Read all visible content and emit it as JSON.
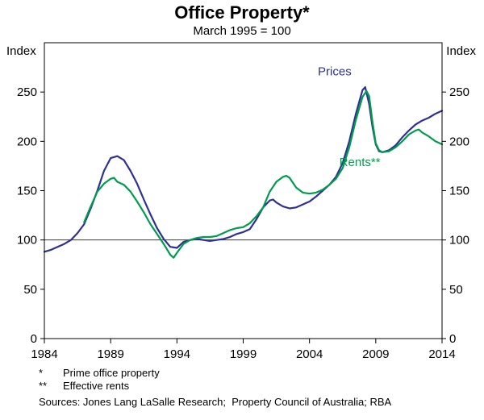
{
  "title": "Office Property*",
  "subtitle": "March 1995 = 100",
  "axis_units": {
    "left": "Index",
    "right": "Index"
  },
  "footnotes": [
    {
      "marker": "*",
      "text": "Prime office property"
    },
    {
      "marker": "**",
      "text": "Effective rents"
    }
  ],
  "sources": "Sources: Jones Lang LaSalle Research;  Property Council of Australia; RBA",
  "colors": {
    "prices": "#2e3192",
    "rents": "#009b4e",
    "axis": "#000000",
    "reference_line": "#3a3a3a"
  },
  "chart_data": {
    "type": "line",
    "title": "Office Property*",
    "subtitle": "March 1995 = 100",
    "xlabel": "",
    "ylabel": "Index",
    "xlim": [
      1984,
      2014
    ],
    "ylim": [
      0,
      300
    ],
    "xticks": [
      1984,
      1989,
      1994,
      1999,
      2004,
      2009,
      2014
    ],
    "yticks": [
      0,
      50,
      100,
      150,
      200,
      250
    ],
    "reference_line": 100,
    "grid": false,
    "legend_position": "inline-annotations",
    "series": [
      {
        "name": "Prices",
        "color": "#2e3192",
        "label_pos": [
          2005.9,
          267
        ],
        "points": [
          [
            1984,
            88
          ],
          [
            1984.5,
            90
          ],
          [
            1985,
            93
          ],
          [
            1985.5,
            96
          ],
          [
            1986,
            100
          ],
          [
            1986.5,
            107
          ],
          [
            1987,
            116
          ],
          [
            1987.5,
            132
          ],
          [
            1988,
            150
          ],
          [
            1988.5,
            170
          ],
          [
            1989,
            183
          ],
          [
            1989.5,
            185
          ],
          [
            1990,
            181
          ],
          [
            1990.5,
            170
          ],
          [
            1991,
            157
          ],
          [
            1991.5,
            141
          ],
          [
            1992,
            126
          ],
          [
            1992.5,
            112
          ],
          [
            1993,
            101
          ],
          [
            1993.5,
            93
          ],
          [
            1994,
            92
          ],
          [
            1994.25,
            95
          ],
          [
            1994.5,
            98
          ],
          [
            1995,
            100
          ],
          [
            1995.5,
            101
          ],
          [
            1996,
            100
          ],
          [
            1996.5,
            99
          ],
          [
            1997,
            100
          ],
          [
            1997.5,
            101
          ],
          [
            1998,
            103
          ],
          [
            1998.5,
            106
          ],
          [
            1999,
            108
          ],
          [
            1999.5,
            111
          ],
          [
            2000,
            121
          ],
          [
            2000.5,
            133
          ],
          [
            2001,
            140
          ],
          [
            2001.25,
            141
          ],
          [
            2001.5,
            138
          ],
          [
            2002,
            134
          ],
          [
            2002.5,
            132
          ],
          [
            2003,
            133
          ],
          [
            2003.5,
            136
          ],
          [
            2004,
            139
          ],
          [
            2004.5,
            144
          ],
          [
            2005,
            150
          ],
          [
            2005.5,
            156
          ],
          [
            2006,
            164
          ],
          [
            2006.5,
            178
          ],
          [
            2007,
            200
          ],
          [
            2007.5,
            228
          ],
          [
            2008,
            252
          ],
          [
            2008.2,
            255
          ],
          [
            2008.5,
            238
          ],
          [
            2008.75,
            215
          ],
          [
            2009,
            197
          ],
          [
            2009.25,
            190
          ],
          [
            2009.5,
            189
          ],
          [
            2010,
            191
          ],
          [
            2010.5,
            196
          ],
          [
            2011,
            204
          ],
          [
            2011.5,
            211
          ],
          [
            2012,
            217
          ],
          [
            2012.5,
            221
          ],
          [
            2013,
            224
          ],
          [
            2013.5,
            228
          ],
          [
            2014,
            231
          ]
        ]
      },
      {
        "name": "Rents**",
        "color": "#009b4e",
        "label_pos": [
          2007.8,
          175
        ],
        "points": [
          [
            1987,
            118
          ],
          [
            1987.5,
            134
          ],
          [
            1988,
            149
          ],
          [
            1988.5,
            157
          ],
          [
            1989,
            162
          ],
          [
            1989.25,
            163
          ],
          [
            1989.5,
            159
          ],
          [
            1990,
            156
          ],
          [
            1990.5,
            149
          ],
          [
            1991,
            139
          ],
          [
            1991.5,
            128
          ],
          [
            1992,
            116
          ],
          [
            1992.5,
            106
          ],
          [
            1993,
            96
          ],
          [
            1993.5,
            85
          ],
          [
            1993.75,
            82
          ],
          [
            1994,
            87
          ],
          [
            1994.5,
            96
          ],
          [
            1995,
            100
          ],
          [
            1995.5,
            102
          ],
          [
            1996,
            103
          ],
          [
            1996.5,
            103
          ],
          [
            1997,
            104
          ],
          [
            1997.5,
            107
          ],
          [
            1998,
            110
          ],
          [
            1998.5,
            112
          ],
          [
            1999,
            113
          ],
          [
            1999.5,
            117
          ],
          [
            2000,
            124
          ],
          [
            2000.5,
            133
          ],
          [
            2001,
            149
          ],
          [
            2001.5,
            159
          ],
          [
            2002,
            164
          ],
          [
            2002.25,
            165
          ],
          [
            2002.5,
            163
          ],
          [
            2003,
            153
          ],
          [
            2003.5,
            148
          ],
          [
            2004,
            147
          ],
          [
            2004.5,
            148
          ],
          [
            2005,
            151
          ],
          [
            2005.5,
            156
          ],
          [
            2006,
            162
          ],
          [
            2006.5,
            173
          ],
          [
            2007,
            194
          ],
          [
            2007.5,
            222
          ],
          [
            2008,
            245
          ],
          [
            2008.3,
            251
          ],
          [
            2008.5,
            246
          ],
          [
            2008.75,
            220
          ],
          [
            2009,
            198
          ],
          [
            2009.25,
            191
          ],
          [
            2009.5,
            189
          ],
          [
            2010,
            190
          ],
          [
            2010.5,
            194
          ],
          [
            2011,
            200
          ],
          [
            2011.5,
            207
          ],
          [
            2012,
            211
          ],
          [
            2012.25,
            212
          ],
          [
            2012.5,
            209
          ],
          [
            2013,
            205
          ],
          [
            2013.5,
            200
          ],
          [
            2014,
            197
          ]
        ]
      }
    ]
  }
}
